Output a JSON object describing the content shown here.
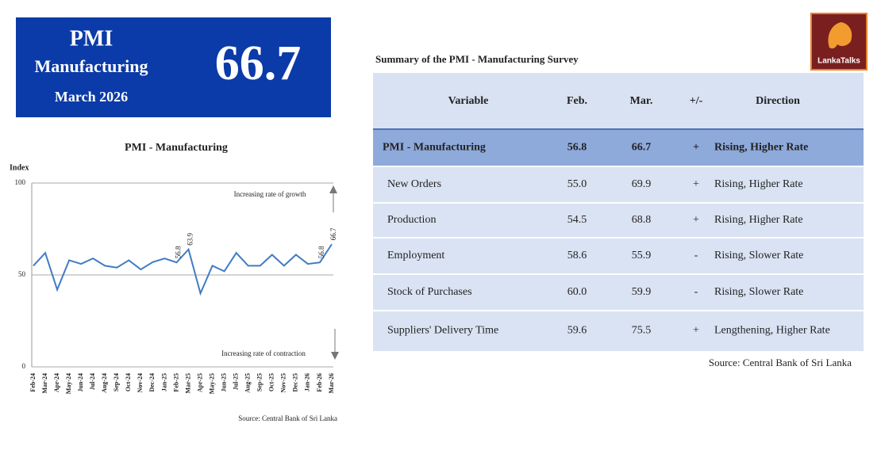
{
  "header": {
    "title": "PMI",
    "subtitle": "Manufacturing",
    "period": "March 2026",
    "value": "66.7"
  },
  "chart_data": {
    "type": "line",
    "title": "PMI - Manufacturing",
    "y_label": "Index",
    "categories": [
      "Feb-24",
      "Mar-24",
      "Apr-24",
      "May-24",
      "Jun-24",
      "Jul-24",
      "Aug-24",
      "Sep-24",
      "Oct-24",
      "Nov-24",
      "Dec-24",
      "Jan-25",
      "Feb-25",
      "Mar-25",
      "Apr-25",
      "May-25",
      "Jun-25",
      "Jul-25",
      "Aug-25",
      "Sep-25",
      "Oct-25",
      "Nov-25",
      "Dec-25",
      "Jan-26",
      "Feb-26",
      "Mar-26"
    ],
    "series": [
      {
        "name": "PMI - Manufacturing",
        "color": "#3f7cc4",
        "values": [
          55,
          62,
          42,
          58,
          56,
          59,
          55,
          54,
          58,
          53,
          57,
          59,
          56.8,
          63.9,
          40,
          55,
          52,
          62,
          55,
          55,
          61,
          55,
          61,
          56,
          56.8,
          66.7
        ],
        "value_labels": [
          null,
          null,
          null,
          null,
          null,
          null,
          null,
          null,
          null,
          null,
          null,
          null,
          "56.8",
          "63.9",
          null,
          null,
          null,
          null,
          null,
          null,
          null,
          null,
          null,
          null,
          "56.8",
          "66.7"
        ]
      }
    ],
    "ylim": [
      0,
      100
    ],
    "yticks": [
      0,
      50,
      100
    ],
    "grid": true,
    "annotations": [
      "Increasing rate of growth",
      "Increasing rate of contraction"
    ],
    "source": "Source: Central Bank of Sri Lanka"
  },
  "table": {
    "title": "Summary of the PMI - Manufacturing Survey",
    "header": [
      "Variable",
      "Feb.",
      "Mar.",
      "+/-",
      "Direction"
    ],
    "rows": [
      [
        "PMI - Manufacturing",
        "56.8",
        "66.7",
        "+",
        "Rising, Higher Rate"
      ],
      [
        "New Orders",
        "55.0",
        "69.9",
        "+",
        "Rising, Higher Rate"
      ],
      [
        "Production",
        "54.5",
        "68.8",
        "+",
        "Rising, Higher Rate"
      ],
      [
        "Employment",
        "58.6",
        "55.9",
        "-",
        "Rising, Slower Rate"
      ],
      [
        "Stock of Purchases",
        "60.0",
        "59.9",
        "-",
        "Rising, Slower Rate"
      ],
      [
        "Suppliers' Delivery Time",
        "59.6",
        "75.5",
        "+",
        "Lengthening, Higher Rate"
      ]
    ],
    "source": "Source: Central Bank of Sri Lanka"
  },
  "logo": {
    "text": "LankaTalks"
  }
}
